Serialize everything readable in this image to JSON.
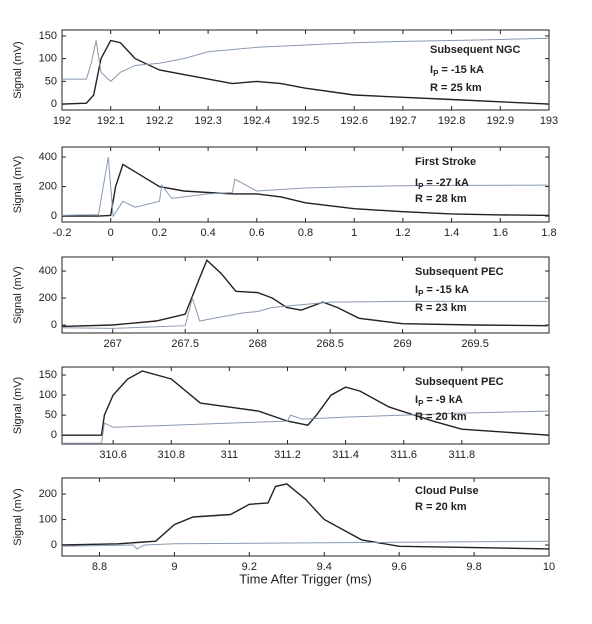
{
  "chart_data": [
    {
      "type": "line",
      "ylabel": "Signal (mV)",
      "xlim": [
        192,
        193
      ],
      "xticks": [
        192,
        192.1,
        192.2,
        192.3,
        192.4,
        192.5,
        192.6,
        192.7,
        192.8,
        192.9,
        193
      ],
      "ylim": [
        -13,
        163
      ],
      "yticks": [
        0,
        50,
        100,
        150
      ],
      "annotations": [
        "Subsequent NGC",
        {
          "symbol": "I",
          "sub": "P",
          "text": "= -15 kA"
        },
        "R = 25 km"
      ],
      "series": [
        {
          "color": "#222222",
          "x": [
            192,
            192.05,
            192.065,
            192.08,
            192.1,
            192.12,
            192.15,
            192.2,
            192.3,
            192.35,
            192.4,
            192.45,
            192.5,
            192.6,
            192.7,
            192.8,
            192.9,
            193
          ],
          "values": [
            0,
            2,
            20,
            100,
            140,
            135,
            100,
            75,
            55,
            45,
            50,
            45,
            35,
            20,
            15,
            10,
            5,
            0
          ]
        },
        {
          "color": "#8a9ab0",
          "x": [
            192,
            192.05,
            192.06,
            192.07,
            192.08,
            192.1,
            192.12,
            192.15,
            192.2,
            192.25,
            192.3,
            192.4,
            192.5,
            192.6,
            192.7,
            192.8,
            192.9,
            193
          ],
          "values": [
            55,
            55,
            90,
            140,
            70,
            50,
            70,
            85,
            90,
            100,
            115,
            125,
            130,
            135,
            138,
            140,
            142,
            145
          ]
        }
      ]
    },
    {
      "type": "line",
      "ylabel": "Signal (mV)",
      "xlim": [
        -0.2,
        1.8
      ],
      "xticks": [
        -0.2,
        0,
        0.2,
        0.4,
        0.6,
        0.8,
        1,
        1.2,
        1.4,
        1.6,
        1.8
      ],
      "ylim": [
        -40,
        468
      ],
      "yticks": [
        0,
        200,
        400
      ],
      "annotations": [
        "First Stroke",
        {
          "symbol": "I",
          "sub": "P",
          "text": "= -27 kA"
        },
        "R = 28 km"
      ],
      "series": [
        {
          "color": "#222222",
          "x": [
            -0.2,
            -0.05,
            0,
            0.02,
            0.05,
            0.1,
            0.2,
            0.3,
            0.4,
            0.5,
            0.6,
            0.7,
            0.8,
            1,
            1.2,
            1.4,
            1.6,
            1.8
          ],
          "values": [
            0,
            0,
            5,
            200,
            350,
            300,
            200,
            170,
            160,
            150,
            150,
            130,
            90,
            50,
            30,
            15,
            8,
            5
          ]
        },
        {
          "color": "#8a9ab0",
          "x": [
            -0.2,
            -0.05,
            -0.01,
            0.01,
            0.05,
            0.1,
            0.2,
            0.21,
            0.25,
            0.3,
            0.4,
            0.5,
            0.51,
            0.6,
            0.8,
            1,
            1.2,
            1.4,
            1.8
          ],
          "values": [
            5,
            10,
            400,
            0,
            100,
            60,
            100,
            210,
            120,
            130,
            150,
            160,
            250,
            170,
            190,
            200,
            205,
            208,
            210
          ]
        }
      ]
    },
    {
      "type": "line",
      "ylabel": "Signal (mV)",
      "xlim": [
        266.65,
        270.01
      ],
      "xticks": [
        267,
        267.5,
        268,
        268.5,
        269,
        269.5
      ],
      "ylim": [
        -59,
        504
      ],
      "yticks": [
        0,
        200,
        400
      ],
      "annotations": [
        "Subsequent PEC",
        {
          "symbol": "I",
          "sub": "P",
          "text": "= -15 kA"
        },
        "R = 23 km"
      ],
      "series": [
        {
          "color": "#222222",
          "x": [
            266.65,
            267,
            267.3,
            267.5,
            267.6,
            267.65,
            267.75,
            267.85,
            268,
            268.1,
            268.2,
            268.3,
            268.45,
            268.55,
            268.7,
            269,
            269.5,
            270
          ],
          "values": [
            -10,
            0,
            30,
            80,
            350,
            480,
            380,
            250,
            240,
            200,
            130,
            110,
            170,
            130,
            50,
            10,
            0,
            -5
          ]
        },
        {
          "color": "#8a9ab0",
          "x": [
            266.65,
            267,
            267.5,
            267.55,
            267.6,
            267.7,
            267.9,
            268,
            268.1,
            268.3,
            268.5,
            269,
            269.5,
            270
          ],
          "values": [
            -20,
            -25,
            -5,
            200,
            30,
            50,
            90,
            100,
            130,
            150,
            170,
            175,
            175,
            175
          ]
        }
      ]
    },
    {
      "type": "line",
      "ylabel": "Signal (mV)",
      "xlim": [
        310.424,
        312.1
      ],
      "xticks": [
        310.6,
        310.8,
        311,
        311.2,
        311.4,
        311.6,
        311.8
      ],
      "ylim": [
        -22,
        170
      ],
      "yticks": [
        0,
        50,
        100,
        150
      ],
      "annotations": [
        "Subsequent PEC",
        {
          "symbol": "I",
          "sub": "P",
          "text": "= -9 kA"
        },
        "R = 20 km"
      ],
      "series": [
        {
          "color": "#222222",
          "x": [
            310.424,
            310.56,
            310.57,
            310.6,
            310.65,
            310.7,
            310.8,
            310.9,
            311,
            311.1,
            311.2,
            311.27,
            311.3,
            311.35,
            311.4,
            311.45,
            311.55,
            311.7,
            311.8,
            312.1
          ],
          "values": [
            0,
            0,
            50,
            100,
            140,
            160,
            140,
            80,
            70,
            60,
            35,
            25,
            50,
            100,
            120,
            110,
            70,
            35,
            15,
            0
          ]
        },
        {
          "color": "#8a9ab0",
          "x": [
            310.424,
            310.56,
            310.57,
            310.6,
            310.8,
            311,
            311.2,
            311.21,
            311.25,
            311.4,
            311.6,
            311.8,
            312.1
          ],
          "values": [
            -20,
            -20,
            30,
            20,
            25,
            30,
            35,
            50,
            40,
            45,
            50,
            55,
            60
          ]
        }
      ]
    },
    {
      "type": "line",
      "ylabel": "Signal (mV)",
      "xlabel": "Time After Trigger (ms)",
      "xlim": [
        8.7,
        10
      ],
      "xticks": [
        8.8,
        9,
        9.2,
        9.4,
        9.6,
        9.8,
        10
      ],
      "ylim": [
        -43,
        263
      ],
      "yticks": [
        0,
        100,
        200
      ],
      "annotations": [
        "Cloud Pulse",
        "R = 20 km"
      ],
      "series": [
        {
          "color": "#222222",
          "x": [
            8.7,
            8.85,
            8.9,
            8.95,
            9,
            9.05,
            9.15,
            9.2,
            9.25,
            9.27,
            9.3,
            9.35,
            9.4,
            9.5,
            9.6,
            9.8,
            10
          ],
          "values": [
            0,
            5,
            10,
            15,
            80,
            110,
            120,
            160,
            165,
            230,
            240,
            180,
            100,
            20,
            -5,
            -10,
            -15
          ]
        },
        {
          "color": "#8a9ab0",
          "x": [
            8.7,
            8.89,
            8.9,
            8.92,
            9,
            9.5,
            10
          ],
          "values": [
            -5,
            0,
            -15,
            0,
            5,
            10,
            15
          ]
        }
      ]
    }
  ]
}
